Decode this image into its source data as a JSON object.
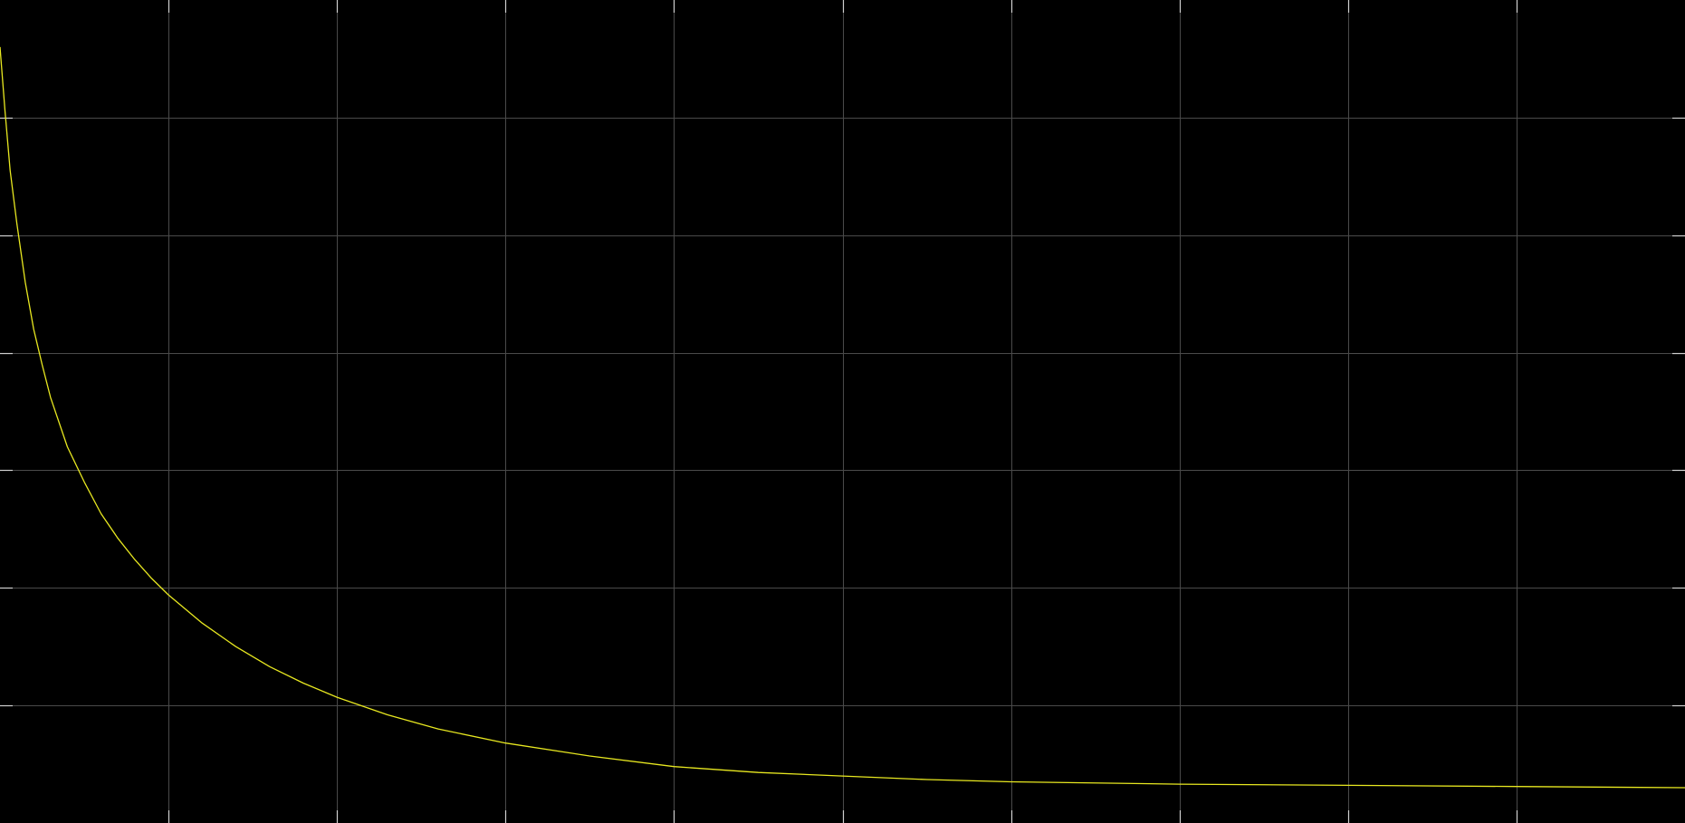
{
  "chart_data": {
    "type": "line",
    "title": "",
    "xlabel": "",
    "ylabel": "",
    "grid": true,
    "legend": "none",
    "xlim": [
      0,
      10
    ],
    "ylim": [
      0,
      7
    ],
    "x_gridlines": [
      1,
      2,
      3,
      4,
      5,
      6,
      7,
      8,
      9
    ],
    "y_gridlines": [
      1,
      2,
      3,
      4,
      5,
      6
    ],
    "series": [
      {
        "color": "#e8e820",
        "x": [
          0,
          0.03,
          0.06,
          0.1,
          0.15,
          0.2,
          0.25,
          0.3,
          0.4,
          0.5,
          0.6,
          0.7,
          0.8,
          0.9,
          1.0,
          1.2,
          1.4,
          1.6,
          1.8,
          2.0,
          2.3,
          2.6,
          3.0,
          3.5,
          4.0,
          4.5,
          5.0,
          5.5,
          6.0,
          7.0,
          8.0,
          9.0,
          10.0
        ],
        "y": [
          6.6,
          6.05,
          5.55,
          5.1,
          4.6,
          4.2,
          3.9,
          3.62,
          3.2,
          2.9,
          2.63,
          2.42,
          2.24,
          2.08,
          1.94,
          1.7,
          1.5,
          1.33,
          1.19,
          1.07,
          0.92,
          0.8,
          0.68,
          0.57,
          0.48,
          0.43,
          0.4,
          0.37,
          0.35,
          0.33,
          0.32,
          0.31,
          0.3
        ]
      }
    ],
    "colors": {
      "background": "#000000",
      "grid": "#4a4a4a",
      "tick": "#d0d0d0",
      "line": "#e8e820"
    }
  }
}
